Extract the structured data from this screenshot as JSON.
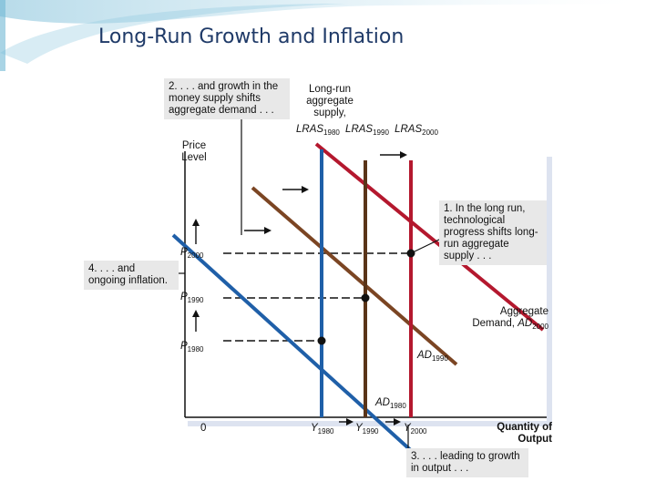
{
  "title": "Long-Run Growth and Inflation",
  "notes": {
    "note2": "2. . . . and growth in the money supply shifts aggregate demand . . .",
    "note1": "1. In the long run, technological progress shifts long-run aggregate supply . . .",
    "note4": "4. . . . and ongoing inflation.",
    "note3": "3. . . . leading to growth in output . . ."
  },
  "lras": {
    "caption": "Long-run aggregate supply,",
    "symbol": "LRAS",
    "years": [
      "1980",
      "1990",
      "2000"
    ]
  },
  "axes": {
    "y_label_1": "Price",
    "y_label_2": "Level",
    "x_label_1": "Quantity of",
    "x_label_2": "Output",
    "origin": "0"
  },
  "price_labels": [
    {
      "symbol": "P",
      "year": "2000"
    },
    {
      "symbol": "P",
      "year": "1990"
    },
    {
      "symbol": "P",
      "year": "1980"
    }
  ],
  "output_labels": [
    {
      "symbol": "Y",
      "year": "1980"
    },
    {
      "symbol": "Y",
      "year": "1990"
    },
    {
      "symbol": "Y",
      "year": "2000"
    }
  ],
  "ad_labels": {
    "ad2000_prefix": "Aggregate",
    "ad2000_word": "Demand,",
    "symbol": "AD",
    "years": [
      "2000",
      "1990",
      "1980"
    ]
  },
  "colors": {
    "lras_1980": "#1f5fa8",
    "lras_1990": "#5a3418",
    "lras_2000": "#b4182e",
    "ad_1980": "#1f5fa8",
    "ad_1990": "#7b4523",
    "ad_2000": "#b4182e",
    "title": "#1f3a68"
  }
}
